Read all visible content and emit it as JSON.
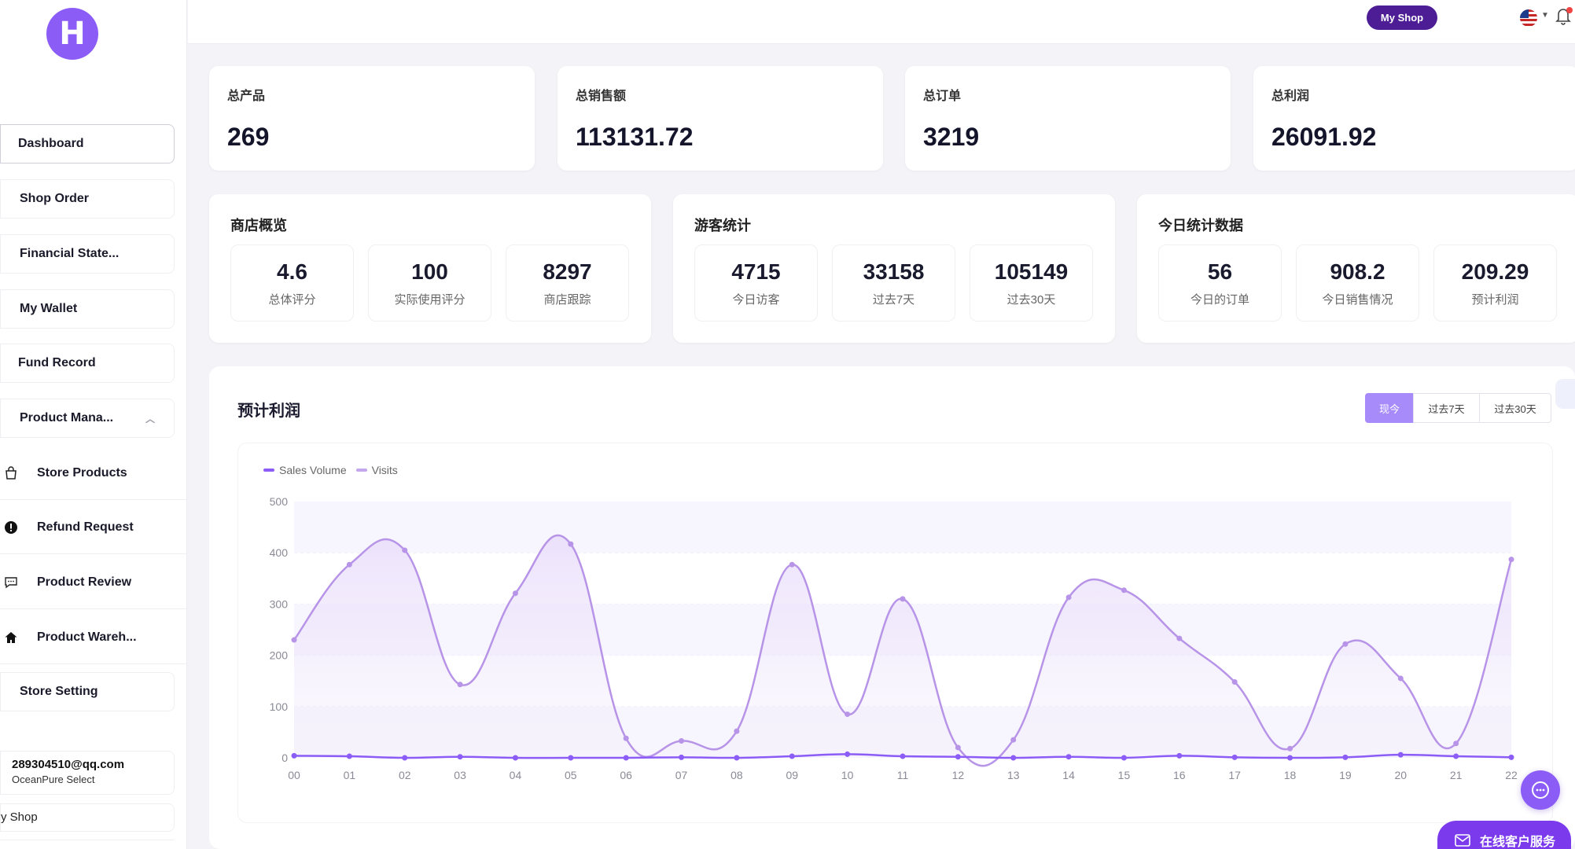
{
  "sidebar": {
    "logo_letter": "H",
    "nav": [
      {
        "label": "Dashboard"
      },
      {
        "label": "Shop Order"
      },
      {
        "label": "Financial State..."
      },
      {
        "label": "My Wallet"
      },
      {
        "label": "Fund Record"
      },
      {
        "label": "Product Mana..."
      }
    ],
    "sub": [
      {
        "label": "Store Products",
        "icon": "shopping-bag-icon"
      },
      {
        "label": "Refund Request",
        "icon": "alert-icon"
      },
      {
        "label": "Product Review",
        "icon": "comment-icon"
      },
      {
        "label": "Product Wareh...",
        "icon": "home-icon"
      }
    ],
    "store_setting": "Store Setting",
    "user": {
      "email": "289304510@qq.com",
      "shop": "OceanPure Select"
    },
    "my_shop_link": "y Shop"
  },
  "topbar": {
    "my_shop_button": "My Shop"
  },
  "kpis": [
    {
      "title": "总产品",
      "value": "269"
    },
    {
      "title": "总销售额",
      "value": "113131.72"
    },
    {
      "title": "总订单",
      "value": "3219"
    },
    {
      "title": "总利润",
      "value": "26091.92"
    }
  ],
  "panels": [
    {
      "title": "商店概览",
      "items": [
        {
          "value": "4.6",
          "label": "总体评分"
        },
        {
          "value": "100",
          "label": "实际使用评分"
        },
        {
          "value": "8297",
          "label": "商店跟踪"
        }
      ]
    },
    {
      "title": "游客统计",
      "items": [
        {
          "value": "4715",
          "label": "今日访客"
        },
        {
          "value": "33158",
          "label": "过去7天"
        },
        {
          "value": "105149",
          "label": "过去30天"
        }
      ]
    },
    {
      "title": "今日统计数据",
      "items": [
        {
          "value": "56",
          "label": "今日的订单"
        },
        {
          "value": "908.2",
          "label": "今日销售情况"
        },
        {
          "value": "209.29",
          "label": "预计利润"
        }
      ]
    }
  ],
  "chart_card": {
    "title": "预计利润",
    "tabs": [
      {
        "label": "现今",
        "active": true
      },
      {
        "label": "过去7天",
        "active": false
      },
      {
        "label": "过去30天",
        "active": false
      }
    ]
  },
  "chart_data": {
    "type": "line",
    "categories": [
      "00",
      "01",
      "02",
      "03",
      "04",
      "05",
      "06",
      "07",
      "08",
      "09",
      "10",
      "11",
      "12",
      "13",
      "14",
      "15",
      "16",
      "17",
      "18",
      "19",
      "20",
      "21",
      "22"
    ],
    "series": [
      {
        "name": "Sales Volume",
        "color": "#8b5cf6",
        "values": [
          4,
          3,
          0,
          2,
          0,
          0,
          0,
          1,
          0,
          3,
          7,
          3,
          2,
          0,
          2,
          0,
          4,
          1,
          0,
          1,
          6,
          3,
          1
        ]
      },
      {
        "name": "Visits",
        "color": "#b794e8",
        "values": [
          230,
          377,
          405,
          143,
          321,
          417,
          38,
          33,
          52,
          377,
          85,
          310,
          20,
          35,
          313,
          327,
          233,
          148,
          18,
          222,
          155,
          28,
          387
        ]
      }
    ],
    "ylim": [
      0,
      500
    ],
    "yticks": [
      0,
      100,
      200,
      300,
      400,
      500
    ],
    "legend": "top-left",
    "grid": true
  },
  "support": {
    "button_label": "在线客户服务"
  },
  "colors": {
    "accent": "#8b5cf6",
    "brand_dark": "#4c1d95"
  }
}
